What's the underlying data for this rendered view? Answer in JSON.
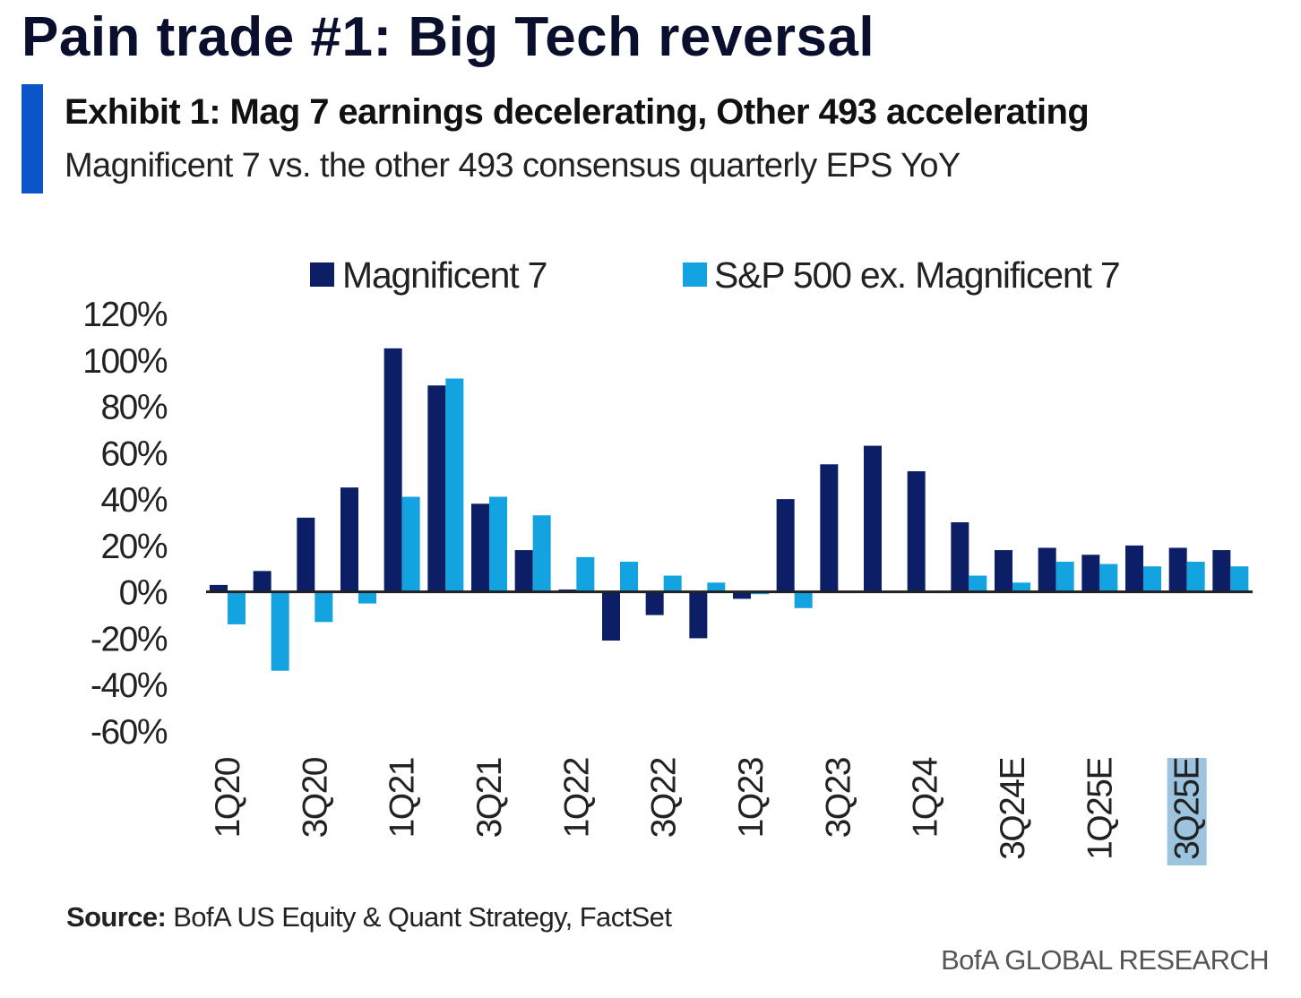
{
  "header": {
    "title": "Pain trade #1: Big Tech reversal",
    "exhibit_title": "Exhibit 1: Mag 7 earnings decelerating, Other 493 accelerating",
    "exhibit_subtitle": "Magnificent 7 vs. the other 493 consensus quarterly EPS YoY",
    "accent_color": "#0a55c8"
  },
  "chart_data": {
    "type": "bar",
    "title": "",
    "xlabel": "",
    "ylabel": "",
    "ylim": [
      -60,
      120
    ],
    "y_ticks": [
      120,
      100,
      80,
      60,
      40,
      20,
      0,
      -20,
      -40,
      -60
    ],
    "y_tick_suffix": "%",
    "grid": false,
    "legend_position": "top",
    "categories": [
      "1Q20",
      "2Q20",
      "3Q20",
      "4Q20",
      "1Q21",
      "2Q21",
      "3Q21",
      "4Q21",
      "1Q22",
      "2Q22",
      "3Q22",
      "4Q22",
      "1Q23",
      "2Q23",
      "3Q23",
      "4Q23",
      "1Q24",
      "2Q24",
      "3Q24E",
      "4Q24E",
      "1Q25E",
      "2Q25E",
      "3Q25E",
      "4Q25E"
    ],
    "x_tick_labels": [
      "1Q20",
      "3Q20",
      "1Q21",
      "3Q21",
      "1Q22",
      "3Q22",
      "1Q23",
      "3Q23",
      "1Q24",
      "3Q24E",
      "1Q25E",
      "3Q25E"
    ],
    "highlighted_tick": "3Q25E",
    "highlight_color": "#9cc4df",
    "series": [
      {
        "name": "Magnificent 7",
        "color": "#0c1f66",
        "values": [
          3,
          9,
          32,
          45,
          105,
          89,
          38,
          18,
          1,
          -21,
          -10,
          -20,
          -3,
          40,
          55,
          63,
          52,
          30,
          18,
          19,
          16,
          20,
          19,
          18
        ]
      },
      {
        "name": "S&P 500 ex. Magnificent 7",
        "color": "#14a3e1",
        "values": [
          -14,
          -34,
          -13,
          -5,
          41,
          92,
          41,
          33,
          15,
          13,
          7,
          4,
          -1,
          -7,
          0,
          0,
          0,
          7,
          4,
          13,
          12,
          11,
          13,
          11
        ]
      }
    ]
  },
  "footer": {
    "source_label": "Source:",
    "source_text": " BofA US Equity & Quant Strategy, FactSet",
    "brand": "BofA GLOBAL RESEARCH"
  }
}
